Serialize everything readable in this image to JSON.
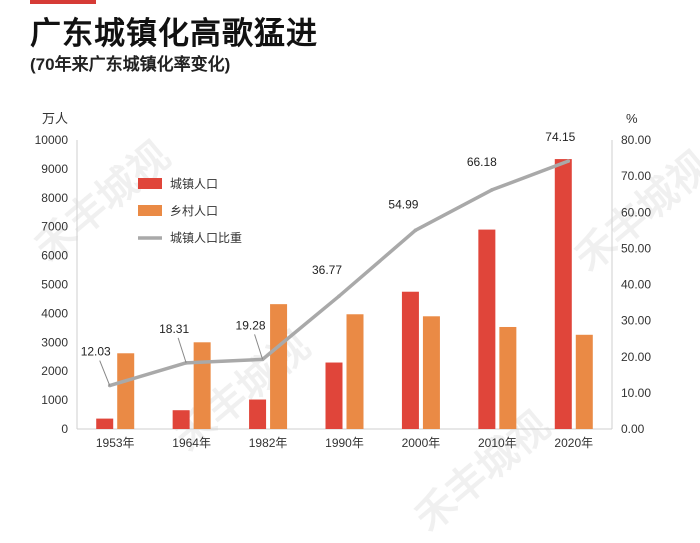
{
  "header": {
    "title": "广东城镇化高歌猛进",
    "subtitle": "(70年来广东城镇化率变化)"
  },
  "watermark": {
    "text": "禾丰城视"
  },
  "colors": {
    "urban": "#e0453a",
    "rural": "#ea8a45",
    "ratio": "#a9a9a9",
    "accent": "#d63b36"
  },
  "chart_data": {
    "type": "bar",
    "categories": [
      "1953年",
      "1964年",
      "1982年",
      "1990年",
      "2000年",
      "2010年",
      "2020年"
    ],
    "series": [
      {
        "name": "城镇人口",
        "type": "bar",
        "axis": "left",
        "values": [
          360,
          650,
          1020,
          2300,
          4750,
          6900,
          9340
        ]
      },
      {
        "name": "乡村人口",
        "type": "bar",
        "axis": "left",
        "values": [
          2620,
          3000,
          4320,
          3970,
          3900,
          3530,
          3260
        ]
      },
      {
        "name": "城镇人口比重",
        "type": "line",
        "axis": "right",
        "values": [
          12.03,
          18.31,
          19.28,
          36.77,
          54.99,
          66.18,
          74.15
        ]
      }
    ],
    "data_labels": [
      "12.03",
      "18.31",
      "19.28",
      "36.77",
      "54.99",
      "66.18",
      "74.15"
    ],
    "left_axis": {
      "label": "万人",
      "ylim": [
        0,
        10000
      ],
      "ticks": [
        "0",
        "1000",
        "2000",
        "3000",
        "4000",
        "5000",
        "6000",
        "7000",
        "8000",
        "9000",
        "10000"
      ]
    },
    "right_axis": {
      "label": "%",
      "ylim": [
        0,
        80
      ],
      "ticks": [
        "0.00",
        "10.00",
        "20.00",
        "30.00",
        "40.00",
        "50.00",
        "60.00",
        "70.00",
        "80.00"
      ]
    },
    "grid": false,
    "legend": "top-left"
  }
}
